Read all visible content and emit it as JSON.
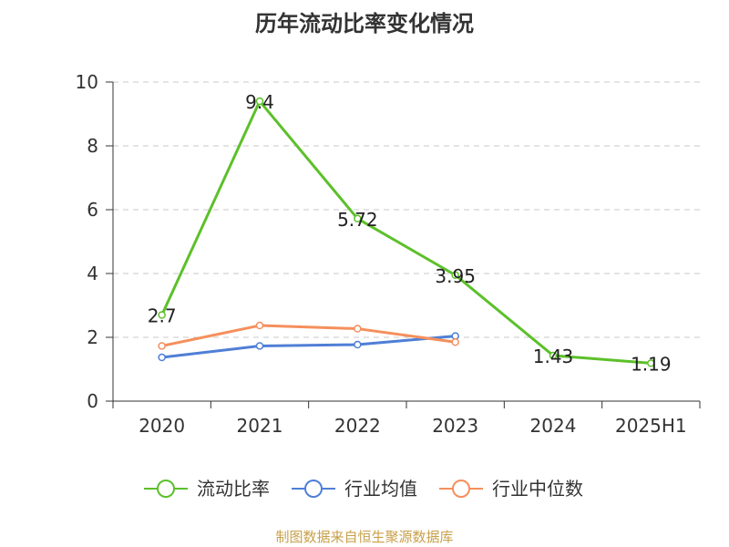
{
  "title": "历年流动比率变化情况",
  "source": "制图数据来自恒生聚源数据库",
  "chart_data": {
    "type": "line",
    "title": "历年流动比率变化情况",
    "categories": [
      "2020",
      "2021",
      "2022",
      "2023",
      "2024",
      "2025H1"
    ],
    "ylim": [
      0,
      10
    ],
    "yticks": [
      0,
      2,
      4,
      6,
      8,
      10
    ],
    "grid": true,
    "legend_position": "bottom",
    "series": [
      {
        "name": "流动比率",
        "color": "#5cc02a",
        "values": [
          2.7,
          9.4,
          5.72,
          3.95,
          1.43,
          1.19
        ],
        "labels": [
          "2.7",
          "9.4",
          "5.72",
          "3.95",
          "1.43",
          "1.19"
        ]
      },
      {
        "name": "行业均值",
        "color": "#4f7fd6",
        "values": [
          1.37,
          1.73,
          1.77,
          2.04,
          null,
          null
        ]
      },
      {
        "name": "行业中位数",
        "color": "#f58f5c",
        "values": [
          1.73,
          2.37,
          2.27,
          1.85,
          null,
          null
        ]
      }
    ]
  }
}
